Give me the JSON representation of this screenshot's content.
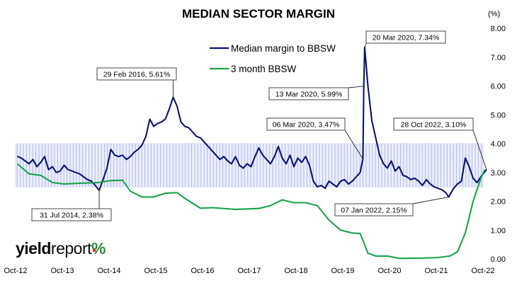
{
  "chart_data": {
    "type": "line",
    "title": "MEDIAN SECTOR MARGIN",
    "unit_label": "(%)",
    "ylim": [
      0,
      8
    ],
    "y_ticks": [
      "0.00",
      "1.00",
      "2.00",
      "3.00",
      "4.00",
      "5.00",
      "6.00",
      "7.00",
      "8.00"
    ],
    "x_range": [
      "2012-10",
      "2022-10"
    ],
    "x_tick_labels": [
      "Oct-12",
      "Oct-13",
      "Oct-14",
      "Oct-15",
      "Oct-16",
      "Oct-17",
      "Oct-18",
      "Oct-19",
      "Oct-20",
      "Oct-21",
      "Oct-22"
    ],
    "band": {
      "y_range": [
        2.5,
        4.0
      ],
      "description": "shaded band"
    },
    "legend_position": "top-center",
    "series": [
      {
        "name": "Median margin to BBSW",
        "color": "#0a1470",
        "points": [
          [
            "2012-10",
            3.56
          ],
          [
            "2012-11",
            3.5
          ],
          [
            "2012-12",
            3.4
          ],
          [
            "2013-01",
            3.3
          ],
          [
            "2013-02",
            3.45
          ],
          [
            "2013-03",
            3.2
          ],
          [
            "2013-04",
            3.35
          ],
          [
            "2013-05",
            3.55
          ],
          [
            "2013-06",
            3.1
          ],
          [
            "2013-07",
            3.2
          ],
          [
            "2013-08",
            3.0
          ],
          [
            "2013-09",
            3.05
          ],
          [
            "2013-10",
            3.25
          ],
          [
            "2013-11",
            3.1
          ],
          [
            "2013-12",
            3.05
          ],
          [
            "2014-01",
            3.0
          ],
          [
            "2014-02",
            2.95
          ],
          [
            "2014-03",
            2.85
          ],
          [
            "2014-04",
            2.75
          ],
          [
            "2014-05",
            2.7
          ],
          [
            "2014-06",
            2.55
          ],
          [
            "2014-07",
            2.38
          ],
          [
            "2014-08",
            2.75
          ],
          [
            "2014-09",
            3.15
          ],
          [
            "2014-10",
            3.8
          ],
          [
            "2014-11",
            3.6
          ],
          [
            "2014-12",
            3.55
          ],
          [
            "2015-01",
            3.6
          ],
          [
            "2015-02",
            3.45
          ],
          [
            "2015-03",
            3.55
          ],
          [
            "2015-04",
            3.7
          ],
          [
            "2015-05",
            3.8
          ],
          [
            "2015-06",
            3.95
          ],
          [
            "2015-07",
            4.25
          ],
          [
            "2015-08",
            4.85
          ],
          [
            "2015-09",
            4.6
          ],
          [
            "2015-10",
            4.7
          ],
          [
            "2015-11",
            4.75
          ],
          [
            "2015-12",
            4.85
          ],
          [
            "2016-01",
            5.2
          ],
          [
            "2016-02",
            5.61
          ],
          [
            "2016-03",
            5.3
          ],
          [
            "2016-04",
            4.75
          ],
          [
            "2016-05",
            4.6
          ],
          [
            "2016-06",
            4.55
          ],
          [
            "2016-07",
            4.4
          ],
          [
            "2016-08",
            4.25
          ],
          [
            "2016-09",
            4.2
          ],
          [
            "2016-10",
            4.05
          ],
          [
            "2016-11",
            3.9
          ],
          [
            "2016-12",
            3.75
          ],
          [
            "2017-01",
            3.6
          ],
          [
            "2017-02",
            3.45
          ],
          [
            "2017-03",
            3.55
          ],
          [
            "2017-04",
            3.4
          ],
          [
            "2017-05",
            3.3
          ],
          [
            "2017-06",
            3.55
          ],
          [
            "2017-07",
            3.25
          ],
          [
            "2017-08",
            3.15
          ],
          [
            "2017-09",
            3.3
          ],
          [
            "2017-10",
            3.2
          ],
          [
            "2017-11",
            3.55
          ],
          [
            "2017-12",
            3.85
          ],
          [
            "2018-01",
            3.6
          ],
          [
            "2018-02",
            3.45
          ],
          [
            "2018-03",
            3.3
          ],
          [
            "2018-04",
            3.55
          ],
          [
            "2018-05",
            3.9
          ],
          [
            "2018-06",
            3.5
          ],
          [
            "2018-07",
            3.3
          ],
          [
            "2018-08",
            3.6
          ],
          [
            "2018-09",
            3.2
          ],
          [
            "2018-10",
            3.5
          ],
          [
            "2018-11",
            3.35
          ],
          [
            "2018-12",
            3.55
          ],
          [
            "2019-01",
            3.25
          ],
          [
            "2019-02",
            2.7
          ],
          [
            "2019-03",
            2.5
          ],
          [
            "2019-04",
            2.55
          ],
          [
            "2019-05",
            2.45
          ],
          [
            "2019-06",
            2.7
          ],
          [
            "2019-07",
            2.6
          ],
          [
            "2019-08",
            2.5
          ],
          [
            "2019-09",
            2.7
          ],
          [
            "2019-10",
            2.75
          ],
          [
            "2019-11",
            2.6
          ],
          [
            "2019-12",
            2.7
          ],
          [
            "2020-01",
            2.85
          ],
          [
            "2020-02",
            3.0
          ],
          [
            "2020-03-06",
            3.47
          ],
          [
            "2020-03-13",
            5.99
          ],
          [
            "2020-03-20",
            7.34
          ],
          [
            "2020-04",
            6.0
          ],
          [
            "2020-05",
            4.8
          ],
          [
            "2020-06",
            4.2
          ],
          [
            "2020-07",
            3.6
          ],
          [
            "2020-08",
            3.3
          ],
          [
            "2020-09",
            3.15
          ],
          [
            "2020-10",
            3.4
          ],
          [
            "2020-11",
            3.05
          ],
          [
            "2020-12",
            3.2
          ],
          [
            "2021-01",
            2.9
          ],
          [
            "2021-02",
            2.85
          ],
          [
            "2021-03",
            2.75
          ],
          [
            "2021-04",
            2.8
          ],
          [
            "2021-05",
            2.7
          ],
          [
            "2021-06",
            2.55
          ],
          [
            "2021-07",
            2.75
          ],
          [
            "2021-08",
            2.6
          ],
          [
            "2021-09",
            2.5
          ],
          [
            "2021-10",
            2.45
          ],
          [
            "2021-11",
            2.4
          ],
          [
            "2021-12",
            2.3
          ],
          [
            "2022-01-07",
            2.15
          ],
          [
            "2022-02",
            2.45
          ],
          [
            "2022-03",
            2.6
          ],
          [
            "2022-04",
            2.7
          ],
          [
            "2022-05",
            3.5
          ],
          [
            "2022-06",
            3.2
          ],
          [
            "2022-07",
            2.8
          ],
          [
            "2022-08",
            2.65
          ],
          [
            "2022-09",
            2.85
          ],
          [
            "2022-10-28",
            3.1
          ]
        ]
      },
      {
        "name": "3 month BBSW",
        "color": "#1aa44a",
        "points": [
          [
            "2012-10",
            3.3
          ],
          [
            "2013-01",
            2.95
          ],
          [
            "2013-04",
            2.9
          ],
          [
            "2013-07",
            2.65
          ],
          [
            "2013-10",
            2.6
          ],
          [
            "2014-01",
            2.62
          ],
          [
            "2014-07",
            2.65
          ],
          [
            "2014-10",
            2.72
          ],
          [
            "2015-01",
            2.73
          ],
          [
            "2015-03",
            2.35
          ],
          [
            "2015-06",
            2.15
          ],
          [
            "2015-09",
            2.15
          ],
          [
            "2015-12",
            2.28
          ],
          [
            "2016-03",
            2.3
          ],
          [
            "2016-05",
            2.1
          ],
          [
            "2016-09",
            1.76
          ],
          [
            "2016-12",
            1.78
          ],
          [
            "2017-06",
            1.72
          ],
          [
            "2017-12",
            1.75
          ],
          [
            "2018-03",
            1.85
          ],
          [
            "2018-06",
            2.05
          ],
          [
            "2018-09",
            1.95
          ],
          [
            "2018-12",
            1.95
          ],
          [
            "2019-03",
            1.85
          ],
          [
            "2019-06",
            1.35
          ],
          [
            "2019-09",
            1.0
          ],
          [
            "2019-12",
            0.9
          ],
          [
            "2020-02",
            0.88
          ],
          [
            "2020-03",
            0.55
          ],
          [
            "2020-04",
            0.2
          ],
          [
            "2020-06",
            0.1
          ],
          [
            "2020-09",
            0.1
          ],
          [
            "2020-12",
            0.02
          ],
          [
            "2021-06",
            0.03
          ],
          [
            "2021-10",
            0.05
          ],
          [
            "2022-01",
            0.1
          ],
          [
            "2022-03",
            0.25
          ],
          [
            "2022-05",
            0.9
          ],
          [
            "2022-07",
            2.0
          ],
          [
            "2022-09",
            2.8
          ],
          [
            "2022-10",
            3.1
          ]
        ]
      }
    ],
    "annotations": [
      {
        "text": "29 Feb 2016, 5.61%",
        "x": "2016-02",
        "y": 5.61
      },
      {
        "text": "31 Jul 2014, 2.38%",
        "x": "2014-07",
        "y": 2.38
      },
      {
        "text": "06 Mar 2020, 3.47%",
        "x": "2020-03-06",
        "y": 3.47
      },
      {
        "text": "13 Mar 2020, 5.99%",
        "x": "2020-03-13",
        "y": 5.99
      },
      {
        "text": "20 Mar 2020, 7.34%",
        "x": "2020-03-20",
        "y": 7.34
      },
      {
        "text": "07 Jan 2022, 2.15%",
        "x": "2022-01-07",
        "y": 2.15
      },
      {
        "text": "28 Oct 2022, 3.10%",
        "x": "2022-10-28",
        "y": 3.1
      }
    ]
  },
  "logo": {
    "part1": "yield",
    "part2": "report",
    "part3": "%"
  }
}
